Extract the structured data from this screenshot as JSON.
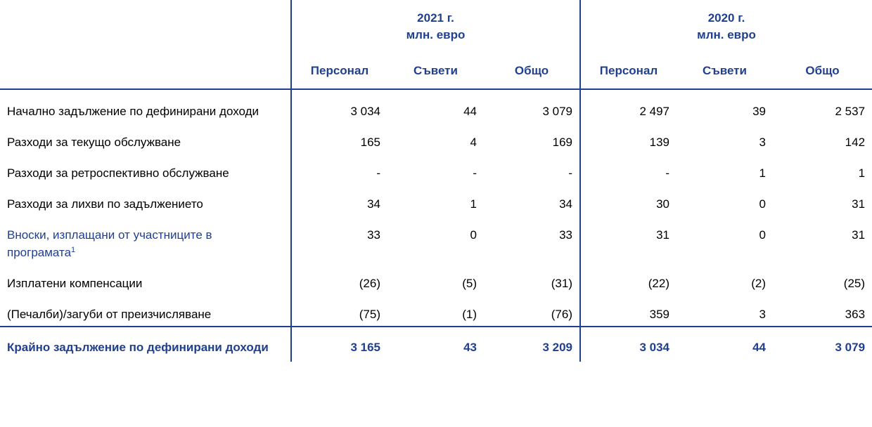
{
  "header": {
    "years": [
      {
        "year": "2021 г.",
        "unit_bold": "млн.",
        "unit_rest": " евро"
      },
      {
        "year": "2020 г.",
        "unit_bold": "млн.",
        "unit_rest": " евро"
      }
    ],
    "columns": [
      "Персонал",
      "Съвети",
      "Общо",
      "Персонал",
      "Съвети",
      "Общо"
    ]
  },
  "rows": [
    {
      "label": "Начално задължение по дефинирани доходи",
      "values": [
        "3 034",
        "44",
        "3 079",
        "2 497",
        "39",
        "2 537"
      ]
    },
    {
      "label": "Разходи за текущо обслужване",
      "values": [
        "165",
        "4",
        "169",
        "139",
        "3",
        "142"
      ]
    },
    {
      "label": "Разходи за ретроспективно обслужване",
      "values": [
        "-",
        "-",
        "-",
        "-",
        "1",
        "1"
      ]
    },
    {
      "label": "Разходи за лихви по задължението",
      "values": [
        "34",
        "1",
        "34",
        "30",
        "0",
        "31"
      ]
    },
    {
      "label": "Вноски, изплащани от участниците в програмата",
      "footnote": "1",
      "values": [
        "33",
        "0",
        "33",
        "31",
        "0",
        "31"
      ]
    },
    {
      "label": "Изплатени компенсации",
      "values": [
        "(26)",
        "(5)",
        "(31)",
        "(22)",
        "(2)",
        "(25)"
      ]
    },
    {
      "label": "(Печалби)/загуби от преизчисляване",
      "values": [
        "(75)",
        "(1)",
        "(76)",
        "359",
        "3",
        "363"
      ]
    }
  ],
  "total": {
    "label": "Крайно задължение по дефинирани доходи",
    "values": [
      "3 165",
      "43",
      "3 209",
      "3 034",
      "44",
      "3 079"
    ]
  },
  "colors": {
    "accent": "#1f3f8f",
    "text": "#000000"
  }
}
